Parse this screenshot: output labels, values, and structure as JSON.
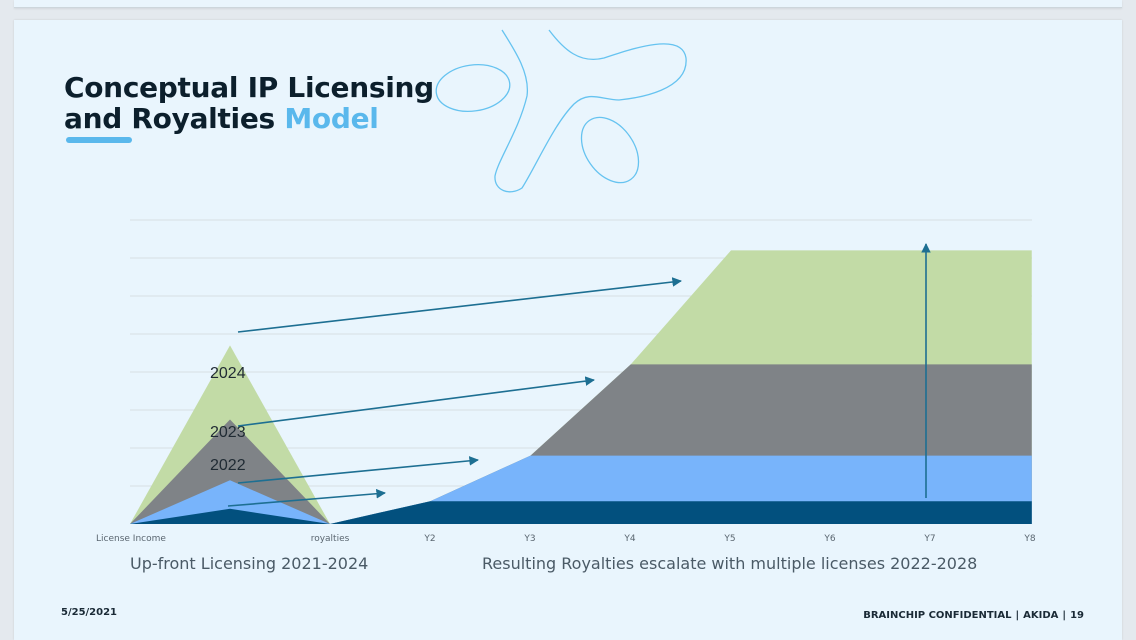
{
  "slide": {
    "title_line1": "Conceptual IP Licensing",
    "title_line2_a": "and Royalties",
    "title_line2_b": "Model",
    "caption_left": "Up-front Licensing 2021-2024",
    "caption_right": "Resulting Royalties escalate with multiple licenses 2022-2028",
    "footer_date": "5/25/2021",
    "footer_confidential": "BRAINCHIP CONFIDENTIAL",
    "footer_product": "AKIDA",
    "footer_page": "19"
  },
  "colors": {
    "green": "#c2dba6",
    "gray": "#7f8387",
    "light_blue": "#78b4fb",
    "dark_blue": "#02507e",
    "arrow": "#1d6f92",
    "accent": "#5ab8ec"
  },
  "chart_data": {
    "type": "area",
    "title": "",
    "xlabel": "",
    "ylabel": "",
    "ylim": [
      0,
      8
    ],
    "grid": true,
    "x": [
      "License Income",
      "royalties",
      "Y2",
      "Y3",
      "Y4",
      "Y5",
      "Y6",
      "Y7",
      "Y8"
    ],
    "licensing_triangles": [
      {
        "name": "2024",
        "peak": 4.7
      },
      {
        "name": "2023",
        "peak": 2.75
      },
      {
        "name": "2022",
        "peak": 1.15
      },
      {
        "name": "",
        "peak": 0.4
      }
    ],
    "triangle_labels": [
      "2024",
      "2023",
      "2022"
    ],
    "series": [
      {
        "values": [
          0,
          0,
          0.6,
          0.6,
          0.6,
          0.6,
          0.6,
          0.6,
          0.6
        ]
      },
      {
        "values": [
          0,
          0,
          0,
          1.2,
          1.2,
          1.2,
          1.2,
          1.2,
          1.2
        ]
      },
      {
        "values": [
          0,
          0,
          0,
          0,
          2.4,
          2.4,
          2.4,
          2.4,
          2.4
        ]
      },
      {
        "values": [
          0,
          0,
          0,
          0,
          0,
          3.0,
          3.0,
          3.0,
          3.0
        ]
      }
    ]
  }
}
